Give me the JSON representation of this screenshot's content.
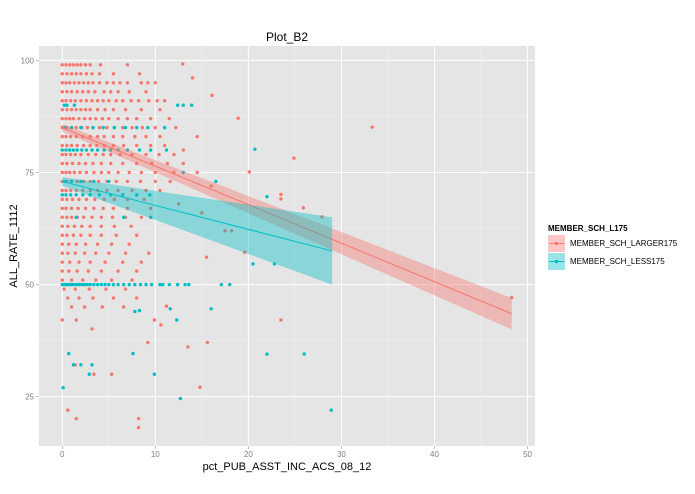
{
  "chart_data": {
    "type": "scatter",
    "title": "Plot_B2",
    "xlabel": "pct_PUB_ASST_INC_ACS_08_12",
    "ylabel": "ALL_RATE_1112",
    "xlim": [
      -2.5,
      50.8
    ],
    "ylim": [
      14,
      103.2
    ],
    "xticks": [
      0,
      10,
      20,
      30,
      40,
      50
    ],
    "yticks": [
      25,
      50,
      75,
      100
    ],
    "grid": true,
    "legend": {
      "title": "MEMBER_SCH_L175",
      "placement": "right"
    },
    "series": [
      {
        "name": "MEMBER_SCH_LARGER175",
        "color": "#F8766D",
        "fit": {
          "x": [
            0,
            48.3
          ],
          "y": [
            85,
            43.5
          ],
          "ci_halfwidth": [
            0.8,
            3.5
          ]
        },
        "rows": [
          {
            "y": 99,
            "x": [
              0,
              0.4,
              0.8,
              1.2,
              1.6,
              2.0,
              2.5,
              3.0,
              4.1,
              7.0
            ]
          },
          {
            "y": 97,
            "x": [
              0,
              0.5,
              1,
              1.5,
              2,
              2.6,
              3.2,
              4,
              5.5,
              8.3
            ]
          },
          {
            "y": 95,
            "x": [
              0,
              0.4,
              0.8,
              1.3,
              1.8,
              2.3,
              2.8,
              3.3,
              4,
              4.8,
              5.5,
              6.2,
              7,
              8.5,
              9.2,
              10
            ]
          },
          {
            "y": 93,
            "x": [
              0,
              0.5,
              1,
              1.6,
              2.2,
              2.8,
              3.5,
              4.5,
              5.2,
              6,
              7.2,
              9
            ]
          },
          {
            "y": 91,
            "x": [
              0,
              0.4,
              0.9,
              1.4,
              2,
              2.6,
              3.2,
              3.8,
              4.4,
              5,
              5.8,
              6.5,
              7.4,
              8.2,
              9.3,
              10.2,
              11
            ]
          },
          {
            "y": 89,
            "x": [
              0,
              0.5,
              1,
              1.5,
              2,
              2.5,
              3,
              3.8,
              4.6,
              5.5,
              6.8,
              8.5,
              10.5
            ]
          },
          {
            "y": 87,
            "x": [
              0,
              0.4,
              0.8,
              1.2,
              1.8,
              2.4,
              3,
              3.6,
              4.3,
              5,
              6,
              7,
              8,
              9.5,
              11.5
            ]
          },
          {
            "y": 85,
            "x": [
              0,
              0.5,
              1,
              1.5,
              2.1,
              2.7,
              3.3,
              4,
              4.8,
              5.6,
              6.5,
              7.5,
              8.6,
              10,
              12.2
            ]
          },
          {
            "y": 83,
            "x": [
              0,
              0.4,
              0.9,
              1.5,
              2.2,
              3,
              3.8,
              4.5,
              5.5,
              6.5,
              7.8,
              9,
              10.5
            ]
          },
          {
            "y": 81,
            "x": [
              0,
              0.5,
              1,
              1.6,
              2.3,
              3,
              3.7,
              4.5,
              5.5,
              6.6,
              8,
              9.5,
              11
            ]
          },
          {
            "y": 79,
            "x": [
              0,
              0.4,
              0.9,
              1.4,
              2,
              2.8,
              3.6,
              4.4,
              5.2,
              6.2,
              7.5,
              9,
              10.4,
              12
            ]
          },
          {
            "y": 77,
            "x": [
              0,
              0.5,
              1.1,
              1.8,
              2.5,
              3.3,
              4.2,
              5.2,
              6.5,
              8,
              9.6,
              11.3,
              13
            ]
          },
          {
            "y": 75,
            "x": [
              0,
              0.4,
              0.8,
              1.3,
              1.9,
              2.6,
              3.4,
              4.2,
              5,
              6,
              7.2,
              8.5,
              10,
              12,
              14.5
            ]
          },
          {
            "y": 73,
            "x": [
              0,
              0.5,
              1,
              1.6,
              2.3,
              3,
              3.9,
              4.8,
              5.8,
              7,
              8.4,
              10,
              11.6
            ]
          },
          {
            "y": 71,
            "x": [
              0,
              0.4,
              0.9,
              1.5,
              2.2,
              3,
              3.8,
              4.8,
              6,
              7.5,
              9,
              10.5
            ]
          },
          {
            "y": 69,
            "x": [
              0,
              0.5,
              1.1,
              1.8,
              2.6,
              3.5,
              4.5,
              5.6,
              7,
              8.8
            ]
          },
          {
            "y": 67,
            "x": [
              0,
              0.4,
              1,
              1.7,
              2.5,
              3.4,
              4.4,
              5.5,
              7,
              9.5
            ]
          },
          {
            "y": 65,
            "x": [
              0,
              0.5,
              1,
              1.6,
              2.3,
              3.2,
              4.2,
              5.4,
              6.8,
              8.5
            ]
          },
          {
            "y": 63,
            "x": [
              0,
              0.6,
              1.3,
              2.1,
              3,
              4.2,
              5.6,
              7.4
            ]
          },
          {
            "y": 61,
            "x": [
              0,
              0.5,
              1.2,
              2,
              3,
              4.2,
              5.8,
              8
            ]
          },
          {
            "y": 59,
            "x": [
              0,
              0.7,
              1.5,
              2.5,
              3.8,
              5.3,
              7.2
            ]
          },
          {
            "y": 57,
            "x": [
              0,
              0.6,
              1.4,
              2.4,
              3.6,
              5,
              6.8,
              9.3
            ]
          },
          {
            "y": 55,
            "x": [
              0,
              0.8,
              1.8,
              3,
              4.6,
              6.5,
              8.5
            ]
          },
          {
            "y": 53,
            "x": [
              0,
              0.7,
              1.6,
              2.8,
              4.2,
              6,
              8
            ]
          },
          {
            "y": 51,
            "x": [
              0,
              1,
              2.2,
              3.6,
              5.3,
              7.5
            ]
          },
          {
            "y": 49,
            "x": [
              0.2,
              1.4,
              2.9,
              4.7,
              6.8
            ]
          },
          {
            "y": 47,
            "x": [
              0.6,
              1.8,
              3.3,
              5.5,
              8
            ]
          },
          {
            "y": 45,
            "x": [
              1,
              2.4,
              4.3,
              6.6
            ]
          }
        ],
        "points": [
          [
            12.95,
            99.2
          ],
          [
            14.0,
            96.1
          ],
          [
            33.3,
            85.1
          ],
          [
            24.9,
            78.2
          ],
          [
            18.9,
            87.1
          ],
          [
            16.1,
            92.2
          ],
          [
            20.1,
            75.1
          ],
          [
            23.5,
            70.1
          ],
          [
            23.5,
            69.1
          ],
          [
            25.9,
            67.1
          ],
          [
            27.9,
            65.1
          ],
          [
            48.3,
            47.1
          ],
          [
            19.6,
            57.2
          ],
          [
            15.5,
            56.1
          ],
          [
            23.5,
            42.1
          ],
          [
            14.8,
            27.1
          ],
          [
            8.2,
            20.1
          ],
          [
            8.2,
            18.1
          ],
          [
            0.6,
            22
          ],
          [
            1.5,
            20.1
          ],
          [
            1.4,
            32.1
          ],
          [
            3.4,
            30
          ],
          [
            5.3,
            30
          ],
          [
            9.2,
            37.1
          ],
          [
            13.5,
            36.1
          ],
          [
            15.6,
            37.1
          ],
          [
            3.2,
            40.1
          ],
          [
            0,
            42.1
          ],
          [
            1.5,
            42.1
          ],
          [
            9.9,
            42.1
          ],
          [
            10.6,
            41
          ],
          [
            11.2,
            45.2
          ],
          [
            17.5,
            62
          ],
          [
            18.2,
            62
          ],
          [
            15,
            66
          ],
          [
            13,
            80
          ],
          [
            14.5,
            83
          ],
          [
            16,
            72
          ],
          [
            12.5,
            68
          ]
        ]
      },
      {
        "name": "MEMBER_SCH_LESS175",
        "color": "#00BFC4",
        "fit": {
          "x": [
            0,
            29
          ],
          "y": [
            73,
            57.5
          ],
          "ci_halfwidth": [
            1,
            7.5
          ]
        },
        "rows": [
          {
            "y": 50,
            "x": [
              0,
              0.2,
              0.4,
              0.6,
              0.8,
              1,
              1.2,
              1.5,
              1.8,
              2.1,
              2.4,
              2.7,
              3,
              3.4,
              3.8,
              4.2,
              4.6,
              5,
              5.5,
              6,
              6.6,
              7.2,
              7.8,
              8.4,
              9,
              9.6,
              10.5,
              10.8,
              11.5,
              12.4,
              13.2,
              13.6,
              17.1,
              18
            ]
          },
          {
            "y": 80,
            "x": [
              0,
              0.4,
              0.8,
              1.2,
              1.6,
              2.1,
              2.6,
              3.2,
              3.8,
              4.5,
              5.2,
              6,
              7,
              8.3,
              9.5,
              11.2
            ]
          },
          {
            "y": 90,
            "x": [
              0.2,
              0.5,
              1.3,
              12.4,
              13,
              13.9
            ]
          },
          {
            "y": 85,
            "x": [
              0.3,
              1,
              2,
              3.3,
              4.4,
              5.6,
              6.8,
              8,
              9.2,
              11
            ]
          },
          {
            "y": 70,
            "x": [
              0,
              0.4,
              0.9,
              1.5,
              2.2,
              3,
              4,
              5.2,
              6.5,
              8,
              9.4
            ]
          },
          {
            "y": 73,
            "x": [
              0.3,
              1,
              2,
              3.4,
              5
            ]
          },
          {
            "y": 65,
            "x": [
              1.5,
              6.6,
              9.5
            ]
          }
        ],
        "points": [
          [
            12.3,
            42.1
          ],
          [
            7.8,
            44
          ],
          [
            8.3,
            44.2
          ],
          [
            16,
            44.6
          ],
          [
            11.6,
            44.6
          ],
          [
            20.5,
            54.6
          ],
          [
            22.8,
            54.6
          ],
          [
            20.7,
            80.2
          ],
          [
            22,
            69.6
          ],
          [
            0.1,
            27
          ],
          [
            0.7,
            34.6
          ],
          [
            1.2,
            32.1
          ],
          [
            2,
            32.1
          ],
          [
            3.2,
            32.1
          ],
          [
            2.9,
            30
          ],
          [
            9.9,
            30
          ],
          [
            7.6,
            34.6
          ],
          [
            12.7,
            24.6
          ],
          [
            22,
            34.5
          ],
          [
            26,
            34.5
          ],
          [
            28.9,
            22
          ],
          [
            16.5,
            73
          ],
          [
            13,
            75
          ]
        ]
      }
    ]
  }
}
